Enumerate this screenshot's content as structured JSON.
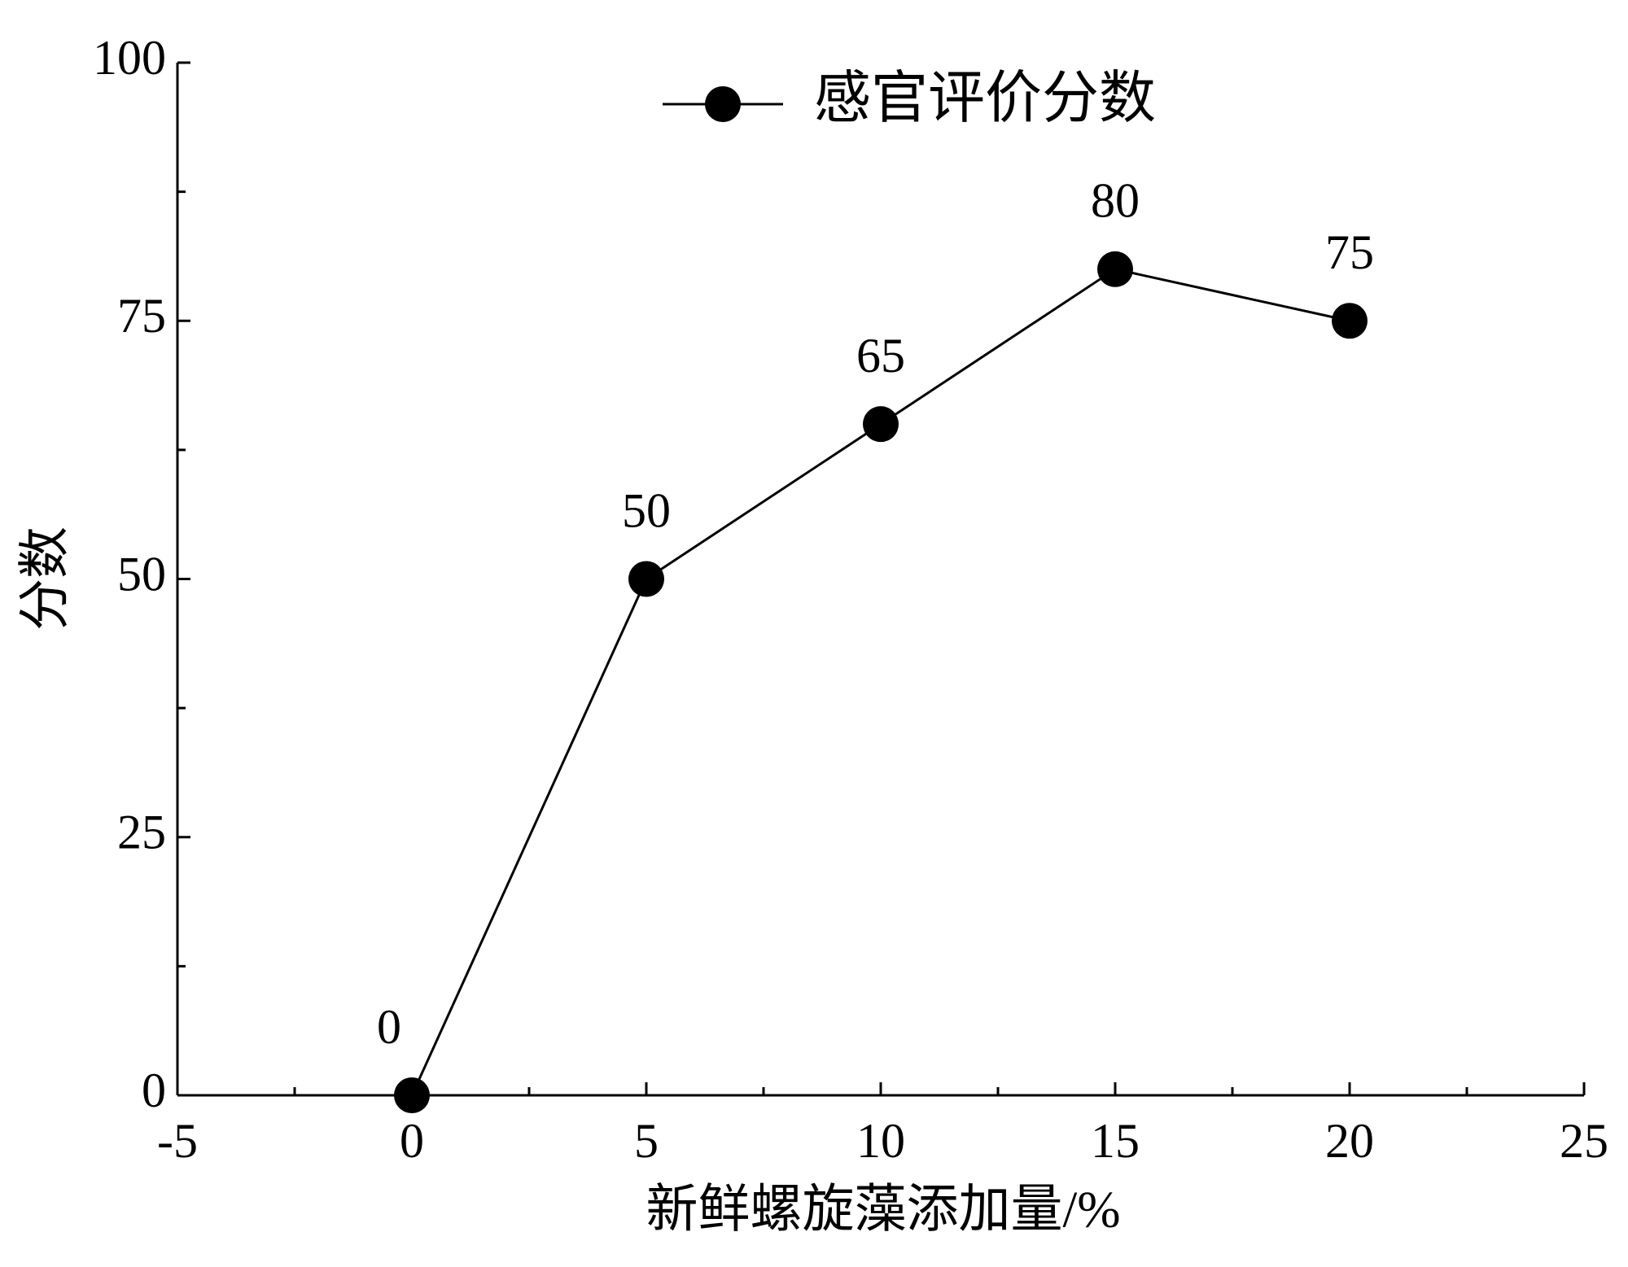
{
  "chart_data": {
    "type": "line",
    "x_label": "新鲜螺旋藻添加量/%",
    "y_label": "分数",
    "x": [
      0,
      5,
      10,
      15,
      20
    ],
    "series": [
      {
        "name": "感官评价分数",
        "color": "#000000",
        "values": [
          0,
          50,
          65,
          80,
          75
        ]
      }
    ],
    "xlim": [
      -5,
      25
    ],
    "xticks": [
      -5,
      0,
      5,
      10,
      15,
      20,
      25
    ],
    "ylim": [
      0,
      100
    ],
    "yticks": [
      0,
      25,
      50,
      75,
      100
    ],
    "data_labels": true,
    "legend": "upper center",
    "grid": false
  }
}
